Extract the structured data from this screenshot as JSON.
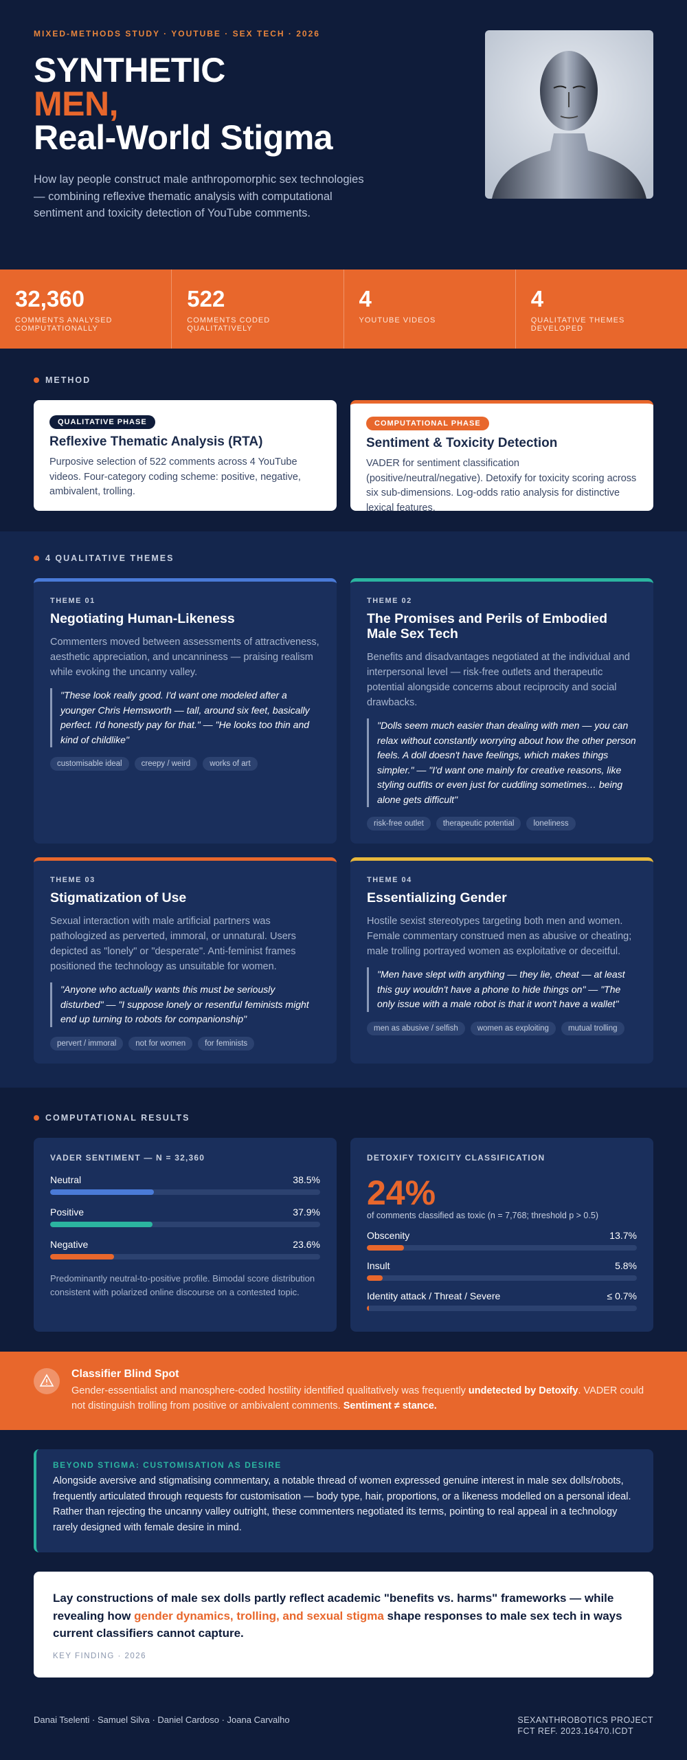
{
  "header": {
    "kicker": "MIXED-METHODS STUDY · YOUTUBE · SEX TECH · 2026",
    "title_line1": "SYNTHETIC",
    "title_line2": "MEN,",
    "title_line3": "Real-World Stigma",
    "subtitle": "How lay people construct male anthropomorphic sex technologies — combining reflexive thematic analysis with computational sentiment and toxicity detection of YouTube comments."
  },
  "stats": [
    {
      "value": "32,360",
      "label": "COMMENTS ANALYSED COMPUTATIONALLY"
    },
    {
      "value": "522",
      "label": "COMMENTS CODED QUALITATIVELY"
    },
    {
      "value": "4",
      "label": "YOUTUBE VIDEOS"
    },
    {
      "value": "4",
      "label": "QUALITATIVE THEMES DEVELOPED"
    }
  ],
  "method": {
    "heading": "METHOD",
    "cards": [
      {
        "badge": "QUALITATIVE PHASE",
        "title": "Reflexive Thematic Analysis (RTA)",
        "text": "Purposive selection of 522 comments across 4 YouTube videos. Four-category coding scheme: positive, negative, ambivalent, trolling."
      },
      {
        "badge": "COMPUTATIONAL PHASE",
        "title": "Sentiment & Toxicity Detection",
        "text": "VADER for sentiment classification (positive/neutral/negative). Detoxify for toxicity scoring across six sub-dimensions. Log-odds ratio analysis for distinctive lexical features."
      }
    ]
  },
  "themes": {
    "heading": "4 QUALITATIVE THEMES",
    "items": [
      {
        "kicker": "THEME 01",
        "title": "Negotiating Human-Likeness",
        "text": "Commenters moved between assessments of attractiveness, aesthetic appreciation, and uncanniness — praising realism while evoking the uncanny valley.",
        "quote": "\"These look really good. I'd want one modeled after a younger Chris Hemsworth — tall, around six feet, basically perfect. I'd honestly pay for that.\" — \"He looks too thin and kind of childlike\"",
        "tags": [
          "customisable ideal",
          "creepy / weird",
          "works of art"
        ]
      },
      {
        "kicker": "THEME 02",
        "title": "The Promises and Perils of Embodied Male Sex Tech",
        "text": "Benefits and disadvantages negotiated at the individual and interpersonal level — risk-free outlets and therapeutic potential alongside concerns about reciprocity and social drawbacks.",
        "quote": "\"Dolls seem much easier than dealing with men — you can relax without constantly worrying about how the other person feels. A doll doesn't have feelings, which makes things simpler.\" — \"I'd want one mainly for creative reasons, like styling outfits or even just for cuddling sometimes… being alone gets difficult\"",
        "tags": [
          "risk-free outlet",
          "therapeutic potential",
          "loneliness"
        ]
      },
      {
        "kicker": "THEME 03",
        "title": "Stigmatization of Use",
        "text": "Sexual interaction with male artificial partners was pathologized as perverted, immoral, or unnatural. Users depicted as \"lonely\" or \"desperate\". Anti-feminist frames positioned the technology as unsuitable for women.",
        "quote": "\"Anyone who actually wants this must be seriously disturbed\" — \"I suppose lonely or resentful feminists might end up turning to robots for companionship\"",
        "tags": [
          "pervert / immoral",
          "not for women",
          "for feminists"
        ]
      },
      {
        "kicker": "THEME 04",
        "title": "Essentializing Gender",
        "text": "Hostile sexist stereotypes targeting both men and women. Female commentary construed men as abusive or cheating; male trolling portrayed women as exploitative or deceitful.",
        "quote": "\"Men have slept with anything — they lie, cheat — at least this guy wouldn't have a phone to hide things on\" — \"The only issue with a male robot is that it won't have a wallet\"",
        "tags": [
          "men as abusive / selfish",
          "women as exploiting",
          "mutual trolling"
        ]
      }
    ]
  },
  "results": {
    "heading": "COMPUTATIONAL RESULTS",
    "sentiment": {
      "title": "VADER SENTIMENT — N = 32,360",
      "bars": [
        {
          "label": "Neutral",
          "value": 38.5,
          "value_label": "38.5%"
        },
        {
          "label": "Positive",
          "value": 37.9,
          "value_label": "37.9%"
        },
        {
          "label": "Negative",
          "value": 23.6,
          "value_label": "23.6%"
        }
      ],
      "note": "Predominantly neutral-to-positive profile. Bimodal score distribution consistent with polarized online discourse on a contested topic."
    },
    "toxicity": {
      "title": "DETOXIFY TOXICITY CLASSIFICATION",
      "headline": "24%",
      "caption": "of comments classified as toxic (n = 7,768; threshold p > 0.5)",
      "bars": [
        {
          "label": "Obscenity",
          "value": 13.7,
          "value_label": "13.7%"
        },
        {
          "label": "Insult",
          "value": 5.8,
          "value_label": "5.8%"
        },
        {
          "label": "Identity attack / Threat / Severe",
          "value": 0.7,
          "value_label": "≤ 0.7%"
        }
      ]
    }
  },
  "blind_spot": {
    "title": "Classifier Blind Spot",
    "text": [
      "Gender-essentialist and manosphere-coded hostility identified qualitatively was frequently ",
      "undetected by Detoxify",
      ". VADER could not distinguish trolling from positive or ambivalent comments. ",
      "Sentiment ≠ stance."
    ]
  },
  "beyond": {
    "kicker": "BEYOND STIGMA: CUSTOMISATION AS DESIRE",
    "text": "Alongside aversive and stigmatising commentary, a notable thread of women expressed genuine interest in male sex dolls/robots, frequently articulated through requests for customisation — body type, hair, proportions, or a likeness modelled on a personal ideal. Rather than rejecting the uncanny valley outright, these commenters negotiated its terms, pointing to real appeal in a technology rarely designed with female desire in mind."
  },
  "finding": {
    "text": [
      "Lay constructions of male sex dolls partly reflect academic \"benefits vs. harms\" frameworks — while revealing how ",
      "gender dynamics, trolling, and sexual stigma",
      " shape responses to male sex tech in ways current classifiers cannot capture."
    ],
    "kicker": "KEY FINDING · 2026"
  },
  "footer": {
    "authors": "Danai Tselenti · Samuel Silva · Daniel Cardoso · Joana Carvalho",
    "project": "SEXANTHROBOTICS PROJECT",
    "ref": "FCT REF. 2023.16470.ICDT"
  }
}
